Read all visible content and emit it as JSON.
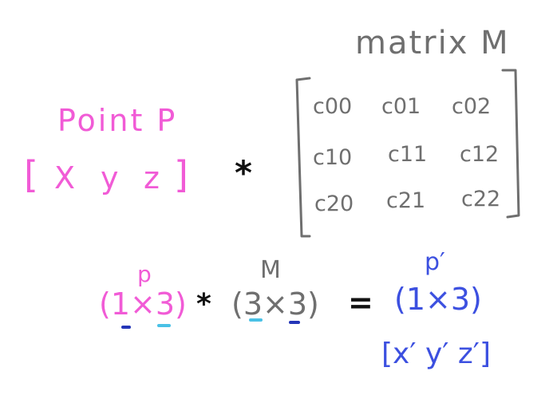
{
  "colors": {
    "pink": "#f15bd6",
    "gray": "#6f6f6f",
    "blue": "#3c50e0",
    "cyan": "#49c1e6",
    "dark_blue": "#2436b8",
    "black": "#111111"
  },
  "point": {
    "title": "Point P",
    "lbracket": "[",
    "x": "X",
    "y": "y",
    "z": "z",
    "rbracket": "]"
  },
  "operator": "*",
  "matrix": {
    "title": "matrix M",
    "rows": [
      [
        "c00",
        "c01",
        "c02"
      ],
      [
        "c10",
        "c11",
        "c12"
      ],
      [
        "c20",
        "c21",
        "c22"
      ]
    ]
  },
  "equation": {
    "p_label": "p",
    "p_dims": "(1×3)",
    "times": "*",
    "m_label": "M",
    "m_dims": "(3×3)",
    "equals": "=",
    "pprime_label": "p′",
    "pprime_dims": "(1×3)",
    "result": "[x′ y′ z′]"
  }
}
